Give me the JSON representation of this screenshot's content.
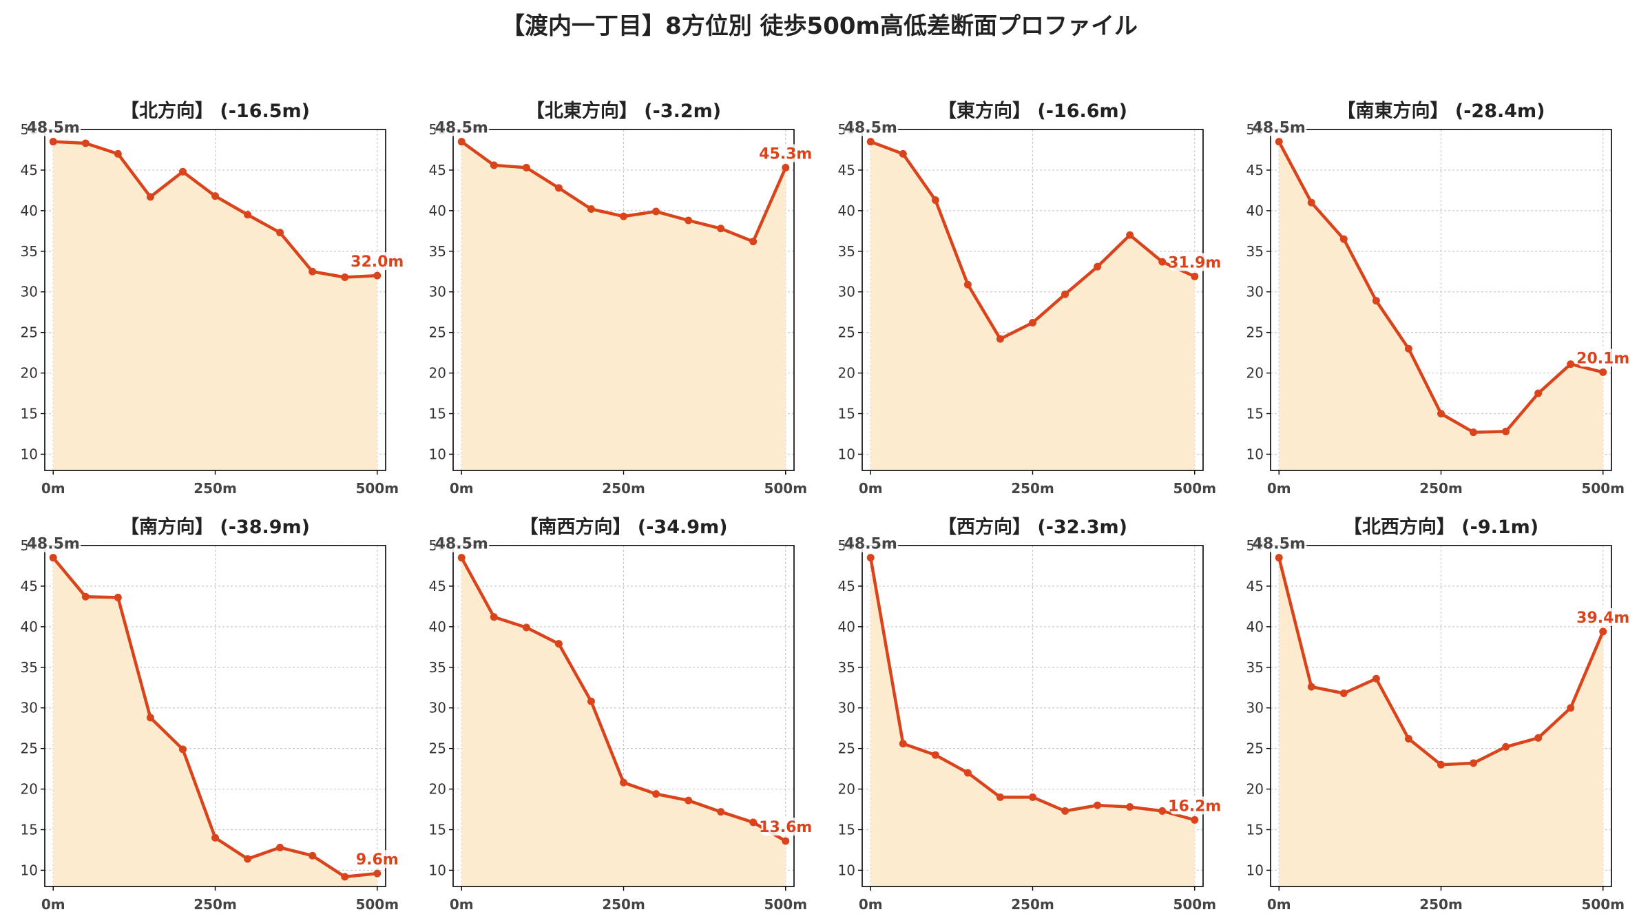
{
  "suptitle": "【渡内一丁目】8方位別 徒歩500m高低差断面プロファイル",
  "colors": {
    "line": "#d9441c",
    "fill": "#fdebd0",
    "grid": "#c8c8c8",
    "axis": "#000000",
    "tick": "#333333"
  },
  "chart_data": [
    {
      "type": "area",
      "title": "【北方向】 (-16.5m)",
      "x": [
        0,
        50,
        100,
        150,
        200,
        250,
        300,
        350,
        400,
        450,
        500
      ],
      "y": [
        48.5,
        48.3,
        47.0,
        41.7,
        44.8,
        41.8,
        39.5,
        37.3,
        32.5,
        31.8,
        32.0
      ],
      "start_label": "48.5m",
      "end_label": "32.0m",
      "xticks": [
        "0m",
        "250m",
        "500m"
      ],
      "yticks": [
        10,
        15,
        20,
        25,
        30,
        35,
        40,
        45,
        50
      ],
      "ylim": [
        8,
        50
      ],
      "grid": true
    },
    {
      "type": "area",
      "title": "【北東方向】 (-3.2m)",
      "x": [
        0,
        50,
        100,
        150,
        200,
        250,
        300,
        350,
        400,
        450,
        500
      ],
      "y": [
        48.5,
        45.6,
        45.3,
        42.8,
        40.2,
        39.3,
        39.9,
        38.8,
        37.8,
        36.2,
        45.3
      ],
      "start_label": "48.5m",
      "end_label": "45.3m",
      "xticks": [
        "0m",
        "250m",
        "500m"
      ],
      "yticks": [
        10,
        15,
        20,
        25,
        30,
        35,
        40,
        45,
        50
      ],
      "ylim": [
        8,
        50
      ],
      "grid": true
    },
    {
      "type": "area",
      "title": "【東方向】 (-16.6m)",
      "x": [
        0,
        50,
        100,
        150,
        200,
        250,
        300,
        350,
        400,
        450,
        500
      ],
      "y": [
        48.5,
        47.0,
        41.3,
        30.9,
        24.2,
        26.2,
        29.7,
        33.1,
        37.0,
        33.7,
        31.9
      ],
      "start_label": "48.5m",
      "end_label": "31.9m",
      "xticks": [
        "0m",
        "250m",
        "500m"
      ],
      "yticks": [
        10,
        15,
        20,
        25,
        30,
        35,
        40,
        45,
        50
      ],
      "ylim": [
        8,
        50
      ],
      "grid": true
    },
    {
      "type": "area",
      "title": "【南東方向】 (-28.4m)",
      "x": [
        0,
        50,
        100,
        150,
        200,
        250,
        300,
        350,
        400,
        450,
        500
      ],
      "y": [
        48.5,
        41.0,
        36.5,
        28.9,
        23.0,
        15.0,
        12.7,
        12.8,
        17.5,
        21.1,
        20.1
      ],
      "start_label": "48.5m",
      "end_label": "20.1m",
      "xticks": [
        "0m",
        "250m",
        "500m"
      ],
      "yticks": [
        10,
        15,
        20,
        25,
        30,
        35,
        40,
        45,
        50
      ],
      "ylim": [
        8,
        50
      ],
      "grid": true
    },
    {
      "type": "area",
      "title": "【南方向】 (-38.9m)",
      "x": [
        0,
        50,
        100,
        150,
        200,
        250,
        300,
        350,
        400,
        450,
        500
      ],
      "y": [
        48.5,
        43.7,
        43.6,
        28.8,
        24.9,
        14.0,
        11.4,
        12.8,
        11.8,
        9.2,
        9.6
      ],
      "start_label": "48.5m",
      "end_label": "9.6m",
      "xticks": [
        "0m",
        "250m",
        "500m"
      ],
      "yticks": [
        10,
        15,
        20,
        25,
        30,
        35,
        40,
        45,
        50
      ],
      "ylim": [
        8,
        50
      ],
      "grid": true
    },
    {
      "type": "area",
      "title": "【南西方向】 (-34.9m)",
      "x": [
        0,
        50,
        100,
        150,
        200,
        250,
        300,
        350,
        400,
        450,
        500
      ],
      "y": [
        48.5,
        41.2,
        39.9,
        37.9,
        30.8,
        20.8,
        19.4,
        18.6,
        17.2,
        15.9,
        13.6
      ],
      "start_label": "48.5m",
      "end_label": "13.6m",
      "xticks": [
        "0m",
        "250m",
        "500m"
      ],
      "yticks": [
        10,
        15,
        20,
        25,
        30,
        35,
        40,
        45,
        50
      ],
      "ylim": [
        8,
        50
      ],
      "grid": true
    },
    {
      "type": "area",
      "title": "【西方向】 (-32.3m)",
      "x": [
        0,
        50,
        100,
        150,
        200,
        250,
        300,
        350,
        400,
        450,
        500
      ],
      "y": [
        48.5,
        25.6,
        24.2,
        22.0,
        19.0,
        19.0,
        17.3,
        18.0,
        17.8,
        17.3,
        16.2
      ],
      "start_label": "48.5m",
      "end_label": "16.2m",
      "xticks": [
        "0m",
        "250m",
        "500m"
      ],
      "yticks": [
        10,
        15,
        20,
        25,
        30,
        35,
        40,
        45,
        50
      ],
      "ylim": [
        8,
        50
      ],
      "grid": true
    },
    {
      "type": "area",
      "title": "【北西方向】 (-9.1m)",
      "x": [
        0,
        50,
        100,
        150,
        200,
        250,
        300,
        350,
        400,
        450,
        500
      ],
      "y": [
        48.5,
        32.6,
        31.8,
        33.6,
        26.2,
        23.0,
        23.2,
        25.2,
        26.3,
        30.0,
        39.4
      ],
      "start_label": "48.5m",
      "end_label": "39.4m",
      "xticks": [
        "0m",
        "250m",
        "500m"
      ],
      "yticks": [
        10,
        15,
        20,
        25,
        30,
        35,
        40,
        45,
        50
      ],
      "ylim": [
        8,
        50
      ],
      "grid": true
    }
  ]
}
